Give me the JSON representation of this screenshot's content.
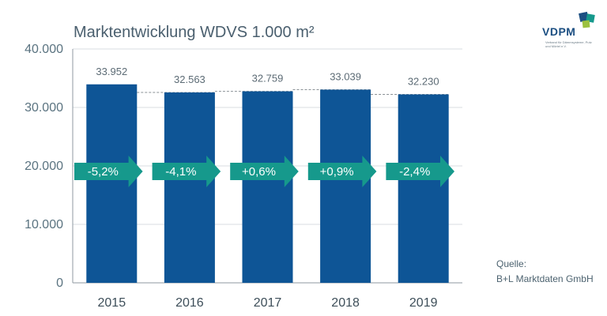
{
  "chart_data": {
    "type": "bar",
    "title": "Marktentwicklung WDVS 1.000 m²",
    "categories": [
      "2015",
      "2016",
      "2017",
      "2018",
      "2019"
    ],
    "values": [
      33952,
      32563,
      32759,
      33039,
      32230
    ],
    "value_labels": [
      "33.952",
      "32.563",
      "32.759",
      "33.039",
      "32.230"
    ],
    "change_labels": [
      "-5,2%",
      "-4,1%",
      "+0,6%",
      "+0,9%",
      "-2,4%"
    ],
    "ylim": [
      0,
      40000
    ],
    "yticks": [
      0,
      10000,
      20000,
      30000,
      40000
    ],
    "ytick_labels": [
      "0",
      "10.000",
      "20.000",
      "30.000",
      "40.000"
    ],
    "grid": true,
    "xlabel": "",
    "ylabel": "",
    "colors": {
      "bar": "#0e5596",
      "arrow": "#16998c",
      "grid": "#d9dde0",
      "dashed": "#8a9196"
    }
  },
  "logo": {
    "word": "VDPM",
    "subtitle": "Verband für Dämmsysteme, Putz und Mörtel e.V.",
    "colors": [
      "#1c4f82",
      "#16998c",
      "#9cc13f"
    ]
  },
  "source": {
    "label": "Quelle:",
    "value": "B+L Marktdaten GmbH"
  }
}
